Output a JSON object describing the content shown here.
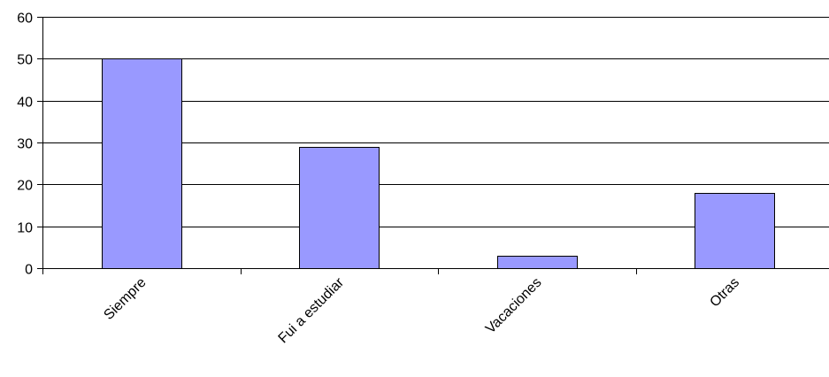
{
  "chart_data": {
    "type": "bar",
    "categories": [
      "Siempre",
      "Fui a estudiar",
      "Vacaciones",
      "Otras"
    ],
    "values": [
      50,
      29,
      3,
      18
    ],
    "ylim": [
      0,
      60
    ],
    "yticks": [
      0,
      10,
      20,
      30,
      40,
      50,
      60
    ],
    "grid": true,
    "legend": "none",
    "colors": {
      "bar_fill": "#9999FF",
      "bar_stroke": "#000000",
      "grid": "#000000",
      "text": "#000000"
    }
  }
}
